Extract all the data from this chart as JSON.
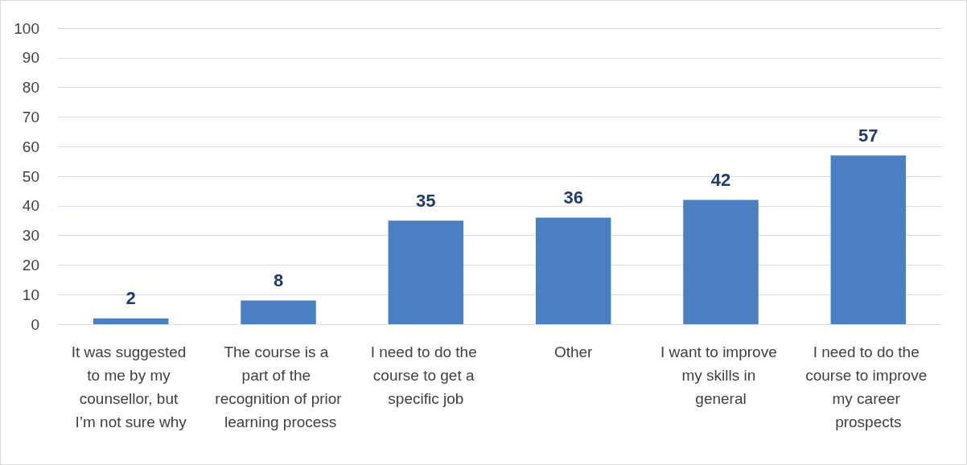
{
  "chart_data": {
    "type": "bar",
    "categories": [
      "It was suggested to me by my counsellor, but I’m not sure why",
      "The course is a part of the recognition of prior learning process",
      "I need to do the course to get a specific job",
      "Other",
      "I want to improve my skills in general",
      "I need to do the course to improve my career prospects"
    ],
    "values": [
      2,
      8,
      35,
      36,
      42,
      57
    ],
    "color": "#4a7fc1",
    "ylim": [
      0,
      100
    ],
    "yticks": [
      0,
      10,
      20,
      30,
      40,
      50,
      60,
      70,
      80,
      90,
      100
    ],
    "grid": "y",
    "data_labels": true
  }
}
